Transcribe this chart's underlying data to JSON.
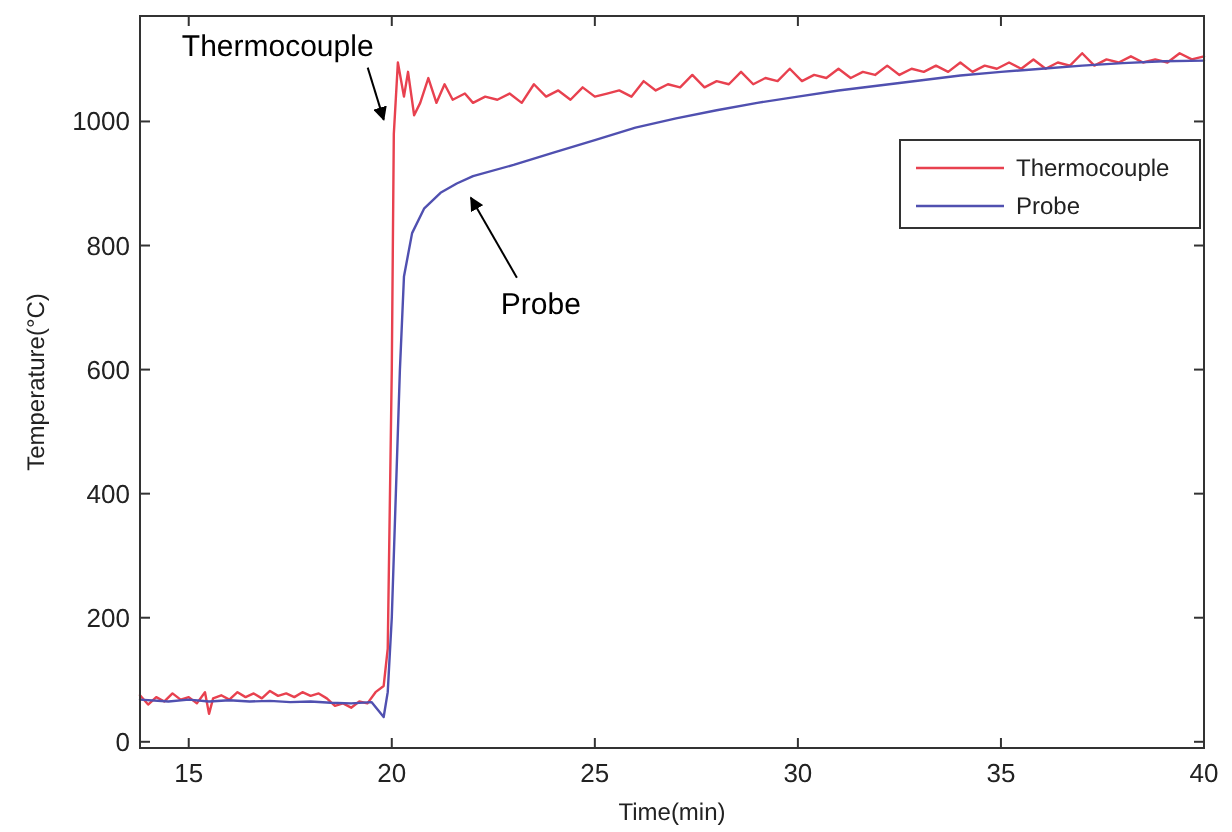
{
  "chart_data": {
    "type": "line",
    "xlabel": "Time(min)",
    "ylabel": "Temperature(°C)",
    "xlim": [
      13.8,
      40
    ],
    "ylim": [
      -10,
      1170
    ],
    "xticks": [
      15,
      20,
      25,
      30,
      35,
      40
    ],
    "yticks": [
      0,
      200,
      400,
      600,
      800,
      1000
    ],
    "grid": false,
    "legend": "top right",
    "marker": "none",
    "line_style": "solid",
    "series": [
      {
        "name": "Thermocouple",
        "color": "#e8414f",
        "x": [
          13.8,
          14.0,
          14.2,
          14.4,
          14.6,
          14.8,
          15.0,
          15.2,
          15.4,
          15.5,
          15.6,
          15.8,
          16.0,
          16.2,
          16.4,
          16.6,
          16.8,
          17.0,
          17.2,
          17.4,
          17.6,
          17.8,
          18.0,
          18.2,
          18.4,
          18.6,
          18.8,
          19.0,
          19.2,
          19.4,
          19.6,
          19.8,
          19.9,
          20.0,
          20.05,
          20.15,
          20.3,
          20.4,
          20.55,
          20.7,
          20.9,
          21.1,
          21.3,
          21.5,
          21.8,
          22.0,
          22.3,
          22.6,
          22.9,
          23.2,
          23.5,
          23.8,
          24.1,
          24.4,
          24.7,
          25.0,
          25.3,
          25.6,
          25.9,
          26.2,
          26.5,
          26.8,
          27.1,
          27.4,
          27.7,
          28.0,
          28.3,
          28.6,
          28.9,
          29.2,
          29.5,
          29.8,
          30.1,
          30.4,
          30.7,
          31.0,
          31.3,
          31.6,
          31.9,
          32.2,
          32.5,
          32.8,
          33.1,
          33.4,
          33.7,
          34.0,
          34.3,
          34.6,
          34.9,
          35.2,
          35.5,
          35.8,
          36.1,
          36.4,
          36.7,
          37.0,
          37.3,
          37.6,
          37.9,
          38.2,
          38.5,
          38.8,
          39.1,
          39.4,
          39.7,
          40.0
        ],
        "values": [
          75,
          60,
          72,
          65,
          78,
          68,
          72,
          62,
          80,
          45,
          70,
          75,
          68,
          80,
          72,
          78,
          70,
          82,
          74,
          78,
          72,
          80,
          74,
          78,
          70,
          58,
          62,
          55,
          65,
          62,
          80,
          90,
          150,
          600,
          980,
          1095,
          1040,
          1080,
          1010,
          1030,
          1070,
          1030,
          1060,
          1035,
          1045,
          1030,
          1040,
          1035,
          1045,
          1030,
          1060,
          1040,
          1050,
          1035,
          1055,
          1040,
          1045,
          1050,
          1040,
          1065,
          1050,
          1060,
          1055,
          1075,
          1055,
          1065,
          1060,
          1080,
          1060,
          1070,
          1065,
          1085,
          1065,
          1075,
          1070,
          1085,
          1070,
          1080,
          1075,
          1090,
          1075,
          1085,
          1080,
          1090,
          1080,
          1095,
          1080,
          1090,
          1085,
          1095,
          1085,
          1100,
          1085,
          1095,
          1090,
          1110,
          1090,
          1100,
          1095,
          1105,
          1095,
          1100,
          1095,
          1110,
          1100,
          1105
        ]
      },
      {
        "name": "Probe",
        "color": "#5050b0",
        "x": [
          13.8,
          14.5,
          15.0,
          15.5,
          16.0,
          16.5,
          17.0,
          17.5,
          18.0,
          18.5,
          19.0,
          19.5,
          19.8,
          19.9,
          20.0,
          20.1,
          20.2,
          20.3,
          20.5,
          20.8,
          21.2,
          21.6,
          22.0,
          23.0,
          24.0,
          25.0,
          26.0,
          27.0,
          28.0,
          29.0,
          30.0,
          31.0,
          32.0,
          33.0,
          34.0,
          35.0,
          36.0,
          37.0,
          38.0,
          39.0,
          40.0
        ],
        "values": [
          68,
          65,
          68,
          65,
          67,
          65,
          66,
          64,
          65,
          63,
          62,
          64,
          40,
          80,
          200,
          400,
          600,
          750,
          820,
          860,
          885,
          900,
          912,
          930,
          950,
          970,
          990,
          1005,
          1018,
          1030,
          1040,
          1050,
          1058,
          1066,
          1074,
          1080,
          1085,
          1090,
          1094,
          1097,
          1098
        ]
      }
    ],
    "annotations": [
      {
        "text": "Thermocouple",
        "x": 19.9,
        "y": 990
      },
      {
        "text": "Probe",
        "x": 21.8,
        "y": 890
      }
    ]
  }
}
